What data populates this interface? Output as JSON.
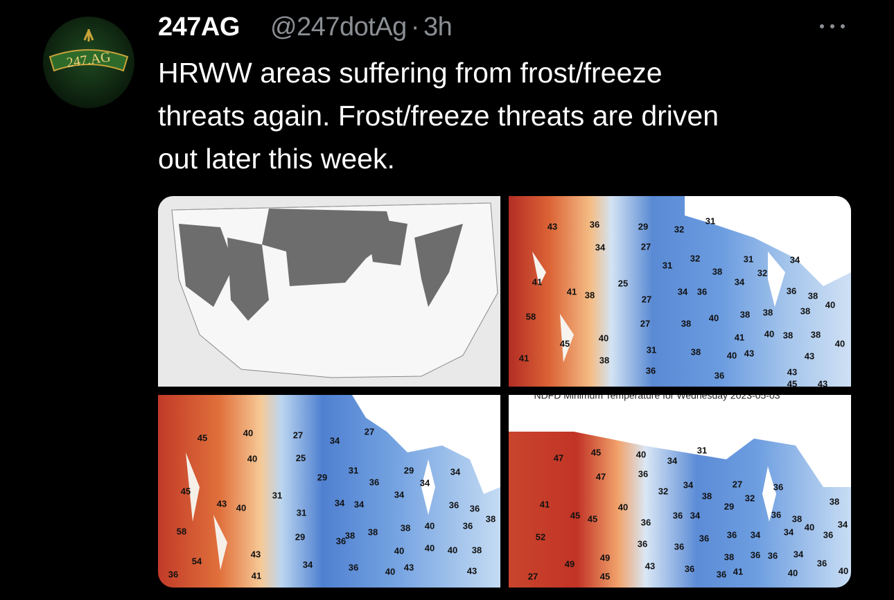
{
  "avatar": {
    "label": "247.AG"
  },
  "header": {
    "name": "247AG",
    "handle": "@247dotAg",
    "separator": "·",
    "time": "3h"
  },
  "text": [
    "HRWW areas suffering from frost/freeze",
    "threats again. Frost/freeze threats are driven",
    "out later this week."
  ],
  "temperature_maps": [
    {
      "labels": [
        43,
        36,
        29,
        32,
        31,
        34,
        27,
        31,
        32,
        31,
        34,
        38,
        34,
        32,
        41,
        25,
        41,
        38,
        27,
        34,
        36,
        36,
        38,
        40,
        58,
        27,
        38,
        40,
        38,
        38,
        38,
        45,
        40,
        41,
        40,
        38,
        38,
        40,
        41,
        38,
        31,
        38,
        40,
        43,
        43,
        36,
        36,
        43,
        45,
        43
      ]
    },
    {
      "labels": [
        45,
        40,
        27,
        34,
        27,
        40,
        25,
        29,
        31,
        29,
        34,
        36,
        34,
        34,
        45,
        43,
        40,
        31,
        34,
        34,
        31,
        36,
        36,
        58,
        29,
        38,
        38,
        38,
        40,
        36,
        38,
        54,
        43,
        34,
        36,
        40,
        40,
        40,
        38,
        36,
        41,
        40,
        43,
        43,
        36
      ]
    },
    {
      "caption": "NDFD Minimum Temperature for Wednesday 2023-05-03",
      "labels": [
        47,
        45,
        40,
        34,
        31,
        36,
        47,
        27,
        36,
        32,
        34,
        38,
        29,
        32,
        38,
        41,
        45,
        45,
        40,
        36,
        34,
        36,
        38,
        40,
        34,
        36,
        36,
        36,
        34,
        34,
        36,
        52,
        36,
        36,
        49,
        49,
        38,
        36,
        36,
        34,
        36,
        27,
        45,
        43,
        36,
        36,
        41,
        40,
        40
      ]
    }
  ]
}
